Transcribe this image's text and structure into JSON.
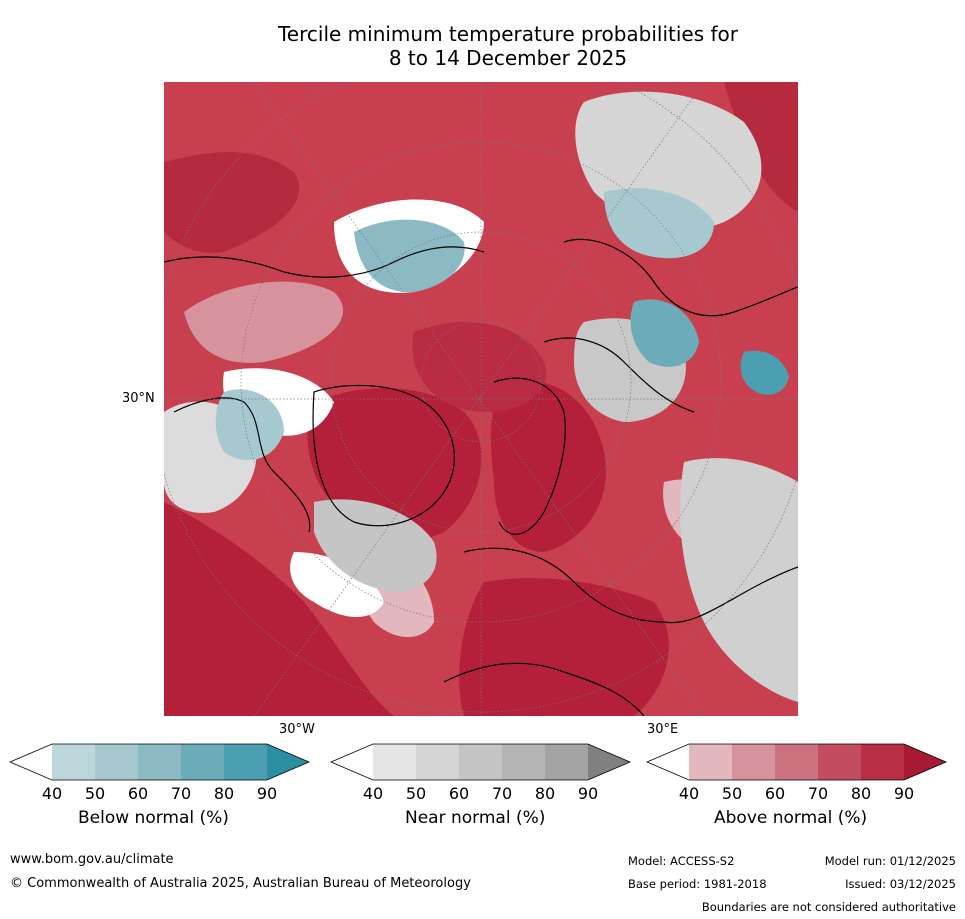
{
  "title": {
    "line1": "Tercile minimum temperature probabilities for",
    "line2": "8 to 14 December 2025"
  },
  "map": {
    "labels": {
      "lat30": "30°N",
      "lon30w": "30°W",
      "lon30e": "30°E"
    },
    "colors": {
      "background_warm": "#c43a4e",
      "deep_red": "#b41f3a",
      "blue": "#6aaab8",
      "grey": "#c8c8c8",
      "white": "#ffffff"
    }
  },
  "colorbars": [
    {
      "label": "Below normal (%)",
      "ticks": [
        "40",
        "50",
        "60",
        "70",
        "80",
        "90"
      ],
      "colors": [
        "#ffffff",
        "#bcd6dc",
        "#a6c9d0",
        "#8bb9c4",
        "#6cabb8",
        "#4b9fb0",
        "#2b8fa1"
      ]
    },
    {
      "label": "Near normal (%)",
      "ticks": [
        "40",
        "50",
        "60",
        "70",
        "80",
        "90"
      ],
      "colors": [
        "#ffffff",
        "#e5e5e5",
        "#d5d5d5",
        "#c5c5c5",
        "#b4b4b4",
        "#a3a3a3",
        "#808080"
      ]
    },
    {
      "label": "Above normal (%)",
      "ticks": [
        "40",
        "50",
        "60",
        "70",
        "80",
        "90"
      ],
      "colors": [
        "#ffffff",
        "#e2b7bd",
        "#d7939d",
        "#cc7180",
        "#c24d60",
        "#b82e45",
        "#a81a33"
      ]
    }
  ],
  "footer": {
    "url": "www.bom.gov.au/climate",
    "copyright": "© Commonwealth of Australia 2025, Australian Bureau of Meteorology",
    "model": "Model: ACCESS-S2",
    "base_period": "Base period: 1981-2018",
    "model_run": "Model run: 01/12/2025",
    "issued": "Issued: 03/12/2025",
    "disclaimer": "Boundaries are not considered authoritative"
  }
}
